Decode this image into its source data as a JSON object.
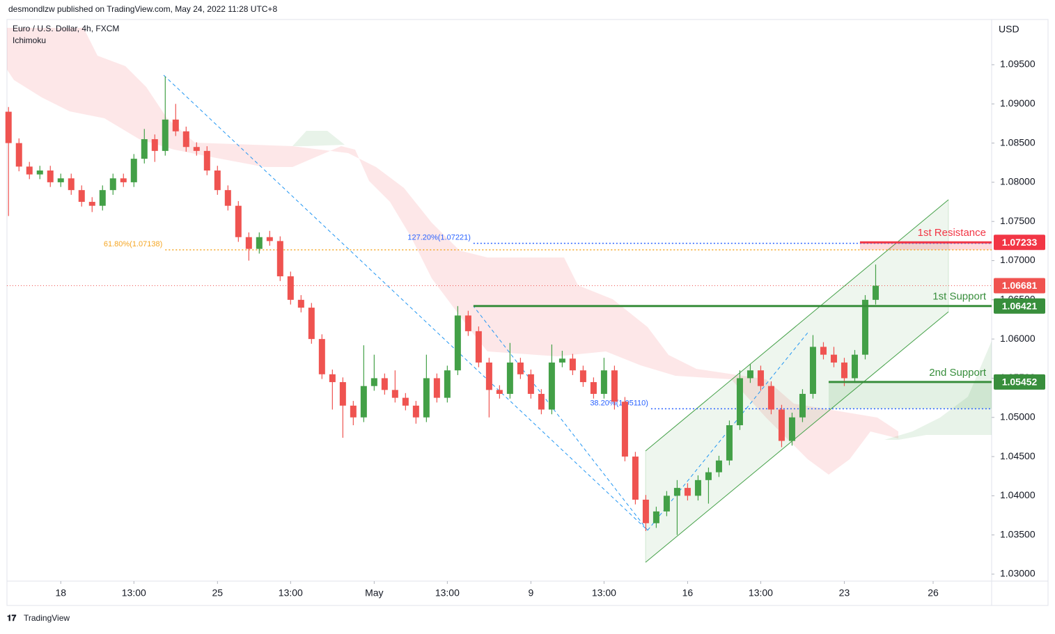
{
  "chart_data": {
    "type": "candlestick",
    "header": "desmondlzw published on TradingView.com, May 24, 2022 11:28 UTC+8",
    "title": "Euro / U.S. Dollar, 4h, FXCM",
    "indicator": "Ichimoku",
    "currency": "USD",
    "brand": "TradingView",
    "up_color": "#43a047",
    "down_color": "#ef5350",
    "x": [
      0,
      2,
      4,
      6,
      8,
      10,
      12,
      14,
      16,
      18,
      20,
      22,
      24,
      26,
      28,
      30,
      32,
      34,
      36,
      38,
      40,
      42,
      44,
      46,
      48,
      50,
      52,
      54,
      56,
      58,
      60,
      62,
      64,
      66,
      68,
      70,
      72,
      74,
      76,
      78,
      80,
      82,
      84,
      86,
      88,
      90,
      92,
      94,
      96,
      98,
      100,
      102,
      104,
      106,
      108,
      110,
      112,
      114,
      116,
      118,
      120,
      122,
      124,
      126,
      128,
      130,
      132,
      134,
      136,
      138,
      140,
      142,
      144,
      146,
      148,
      150,
      152,
      154,
      156,
      158,
      160,
      162,
      164,
      166
    ],
    "open": [
      1.089,
      1.085,
      1.082,
      1.081,
      1.0815,
      1.08,
      1.0805,
      1.079,
      1.0775,
      1.077,
      1.079,
      1.0805,
      1.08,
      1.083,
      1.0855,
      1.084,
      1.088,
      1.0865,
      1.0845,
      1.084,
      1.0815,
      1.079,
      1.077,
      1.073,
      1.0715,
      1.073,
      1.0725,
      1.068,
      1.065,
      1.064,
      1.06,
      1.0555,
      1.0545,
      1.0515,
      1.05,
      1.054,
      1.055,
      1.0535,
      1.0525,
      1.0515,
      1.05,
      1.055,
      1.0525,
      1.056,
      1.063,
      1.061,
      1.057,
      1.0535,
      1.053,
      1.057,
      1.0555,
      1.053,
      1.051,
      1.057,
      1.0575,
      1.056,
      1.0545,
      1.053,
      1.056,
      1.052,
      1.045,
      1.0395,
      1.0365,
      1.038,
      1.04,
      1.041,
      1.04,
      1.042,
      1.043,
      1.0445,
      1.049,
      1.055,
      1.056,
      1.054,
      1.051,
      1.047,
      1.05,
      1.053,
      1.059,
      1.058,
      1.057,
      1.055,
      1.058,
      1.065
    ],
    "high": [
      1.0896,
      1.0856,
      1.0826,
      1.0821,
      1.0821,
      1.0811,
      1.0811,
      1.0796,
      1.0781,
      1.0796,
      1.0811,
      1.0811,
      1.0836,
      1.0868,
      1.0861,
      1.0935,
      1.09,
      1.0871,
      1.0851,
      1.0846,
      1.0821,
      1.0796,
      1.0776,
      1.0736,
      1.0736,
      1.0738,
      1.0731,
      1.0686,
      1.0656,
      1.0646,
      1.0606,
      1.0561,
      1.0551,
      1.0521,
      1.0592,
      1.058,
      1.0556,
      1.056,
      1.0531,
      1.0521,
      1.058,
      1.0556,
      1.0566,
      1.0642,
      1.0636,
      1.0616,
      1.0576,
      1.0541,
      1.0595,
      1.0576,
      1.0561,
      1.0536,
      1.0593,
      1.0585,
      1.0581,
      1.0566,
      1.0551,
      1.0576,
      1.0566,
      1.0526,
      1.0456,
      1.0401,
      1.0386,
      1.0406,
      1.042,
      1.0416,
      1.0426,
      1.0436,
      1.0451,
      1.0496,
      1.056,
      1.0568,
      1.0566,
      1.0546,
      1.0516,
      1.0506,
      1.0536,
      1.0605,
      1.0596,
      1.059,
      1.0576,
      1.0586,
      1.0656,
      1.0695
    ],
    "low": [
      1.0757,
      1.0814,
      1.0804,
      1.0804,
      1.0794,
      1.0794,
      1.0784,
      1.0769,
      1.0762,
      1.0764,
      1.0784,
      1.0794,
      1.0794,
      1.0824,
      1.0826,
      1.0834,
      1.0859,
      1.0839,
      1.0834,
      1.0809,
      1.0784,
      1.0764,
      1.0724,
      1.07,
      1.0709,
      1.0719,
      1.0674,
      1.0644,
      1.0634,
      1.0594,
      1.0549,
      1.051,
      1.0474,
      1.049,
      1.0494,
      1.0534,
      1.0529,
      1.0519,
      1.0509,
      1.0492,
      1.0494,
      1.0519,
      1.0519,
      1.0554,
      1.0604,
      1.0564,
      1.05,
      1.0524,
      1.0524,
      1.0549,
      1.0524,
      1.0504,
      1.0504,
      1.0564,
      1.0554,
      1.0539,
      1.0524,
      1.0524,
      1.051,
      1.0444,
      1.0389,
      1.0355,
      1.0359,
      1.0374,
      1.035,
      1.0394,
      1.0394,
      1.039,
      1.0424,
      1.0439,
      1.0484,
      1.0544,
      1.0534,
      1.0504,
      1.0462,
      1.0464,
      1.0494,
      1.0524,
      1.0574,
      1.0564,
      1.054,
      1.0544,
      1.0574,
      1.0644
    ],
    "close": [
      1.085,
      1.082,
      1.081,
      1.0815,
      1.08,
      1.0805,
      1.079,
      1.0775,
      1.077,
      1.079,
      1.0805,
      1.08,
      1.083,
      1.0855,
      1.084,
      1.088,
      1.0865,
      1.0845,
      1.084,
      1.0815,
      1.079,
      1.077,
      1.073,
      1.0715,
      1.073,
      1.0725,
      1.068,
      1.065,
      1.064,
      1.06,
      1.0555,
      1.0545,
      1.0515,
      1.05,
      1.054,
      1.055,
      1.0535,
      1.0525,
      1.0515,
      1.05,
      1.055,
      1.0525,
      1.056,
      1.063,
      1.061,
      1.057,
      1.0535,
      1.053,
      1.057,
      1.0555,
      1.053,
      1.051,
      1.057,
      1.0575,
      1.056,
      1.0545,
      1.053,
      1.056,
      1.052,
      1.045,
      1.0395,
      1.0365,
      1.038,
      1.04,
      1.041,
      1.04,
      1.042,
      1.043,
      1.0445,
      1.049,
      1.055,
      1.056,
      1.054,
      1.051,
      1.047,
      1.05,
      1.053,
      1.059,
      1.058,
      1.057,
      1.055,
      1.058,
      1.065,
      1.0668
    ],
    "xlim": [
      -0.3,
      188.2
    ],
    "ylim": [
      1.02911,
      1.10077
    ],
    "xticks": [
      {
        "value": 10,
        "label": "18"
      },
      {
        "value": 24,
        "label": "13:00"
      },
      {
        "value": 40,
        "label": "25"
      },
      {
        "value": 54,
        "label": "13:00"
      },
      {
        "value": 70,
        "label": "May"
      },
      {
        "value": 84,
        "label": "13:00"
      },
      {
        "value": 100,
        "label": "9"
      },
      {
        "value": 114,
        "label": "13:00"
      },
      {
        "value": 130,
        "label": "16"
      },
      {
        "value": 144,
        "label": "13:00"
      },
      {
        "value": 160,
        "label": "23"
      },
      {
        "value": 177,
        "label": "26"
      }
    ],
    "yticks": [
      {
        "value": 1.095,
        "label": "1.09500"
      },
      {
        "value": 1.09,
        "label": "1.09000"
      },
      {
        "value": 1.085,
        "label": "1.08500"
      },
      {
        "value": 1.08,
        "label": "1.08000"
      },
      {
        "value": 1.075,
        "label": "1.07500"
      },
      {
        "value": 1.07,
        "label": "1.07000"
      },
      {
        "value": 1.065,
        "label": "1.06500"
      },
      {
        "value": 1.06,
        "label": "1.06000"
      },
      {
        "value": 1.055,
        "label": "1.05500"
      },
      {
        "value": 1.05,
        "label": "1.05000"
      },
      {
        "value": 1.045,
        "label": "1.04500"
      },
      {
        "value": 1.04,
        "label": "1.04000"
      },
      {
        "value": 1.035,
        "label": "1.03500"
      },
      {
        "value": 1.03,
        "label": "1.03000"
      }
    ],
    "last_price": {
      "value": 1.06681,
      "color": "#f05350"
    },
    "levels": [
      {
        "label": "1st Resistance",
        "value": 1.07233,
        "color": "#f23645",
        "start": 163
      },
      {
        "label": "1st Support",
        "value": 1.06421,
        "color": "#388e3c",
        "start": 89
      },
      {
        "label": "2nd Support",
        "value": 1.05452,
        "color": "#388e3c",
        "start": 157
      }
    ],
    "fib_levels": [
      {
        "label": "61.80%(1.07138)",
        "value": 1.07138,
        "color": "#f5a623",
        "start": 30
      },
      {
        "label": "127.20%(1.07221)",
        "value": 1.07221,
        "color": "#2962ff",
        "start": 89
      },
      {
        "label": "38.20%(1.05110)",
        "value": 1.0511,
        "color": "#2962ff",
        "start": 123
      }
    ]
  }
}
